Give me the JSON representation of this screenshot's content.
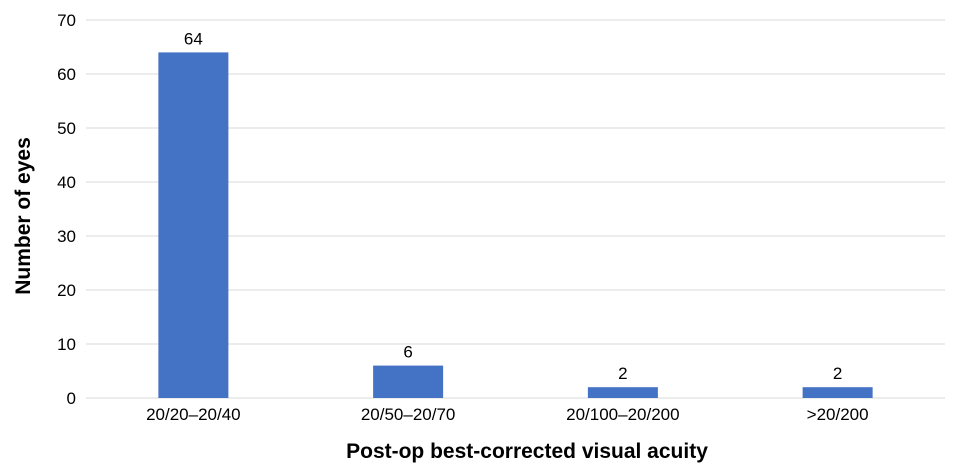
{
  "chart_data": {
    "type": "bar",
    "title": "",
    "xlabel": "Post-op best-corrected visual acuity",
    "ylabel": "Number of eyes",
    "categories": [
      "20/20–20/40",
      "20/50–20/70",
      "20/100–20/200",
      ">20/200"
    ],
    "values": [
      64,
      6,
      2,
      2
    ],
    "ylim": [
      0,
      70
    ],
    "yticks": [
      0,
      10,
      20,
      30,
      40,
      50,
      60,
      70
    ],
    "bar_color": "#4472c4",
    "grid": true,
    "legend": "none"
  }
}
